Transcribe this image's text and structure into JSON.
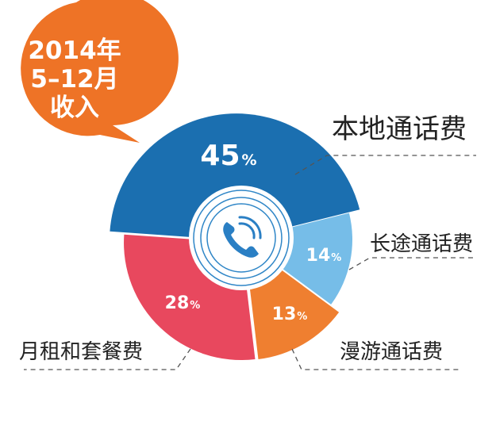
{
  "badge": {
    "line1": "2014年",
    "line2": "5–12月",
    "line3": "收入",
    "color": "#ee7326"
  },
  "center_icon": "phone-ringing-icon",
  "chart_data": {
    "type": "pie",
    "categories": [
      "本地通话费",
      "长途通话费",
      "漫游通话费",
      "月租和套餐费"
    ],
    "values": [
      45,
      14,
      13,
      28
    ],
    "value_labels": [
      "45",
      "14",
      "13",
      "28"
    ],
    "unit": "%",
    "colors": [
      "#1b6fb0",
      "#76bde8",
      "#ef7f30",
      "#e8485e"
    ]
  }
}
